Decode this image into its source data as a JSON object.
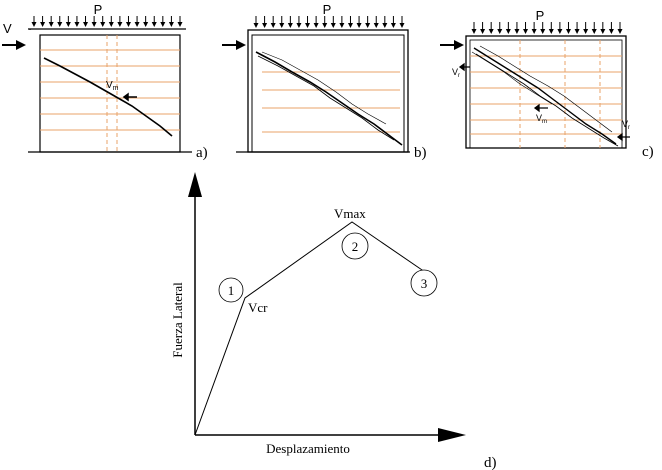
{
  "panels": [
    {
      "label": "a)",
      "load_label": "P",
      "shear_label": "V",
      "force_label": "V",
      "force_sub": "m"
    },
    {
      "label": "b)",
      "load_label": "P"
    },
    {
      "label": "c)",
      "load_label": "P",
      "force_labels": [
        {
          "main": "V",
          "sub": "r"
        },
        {
          "main": "V",
          "sub": "m"
        },
        {
          "main": "V",
          "sub": "r"
        }
      ]
    }
  ],
  "graph": {
    "panel_label": "d)",
    "ylabel": "Fuerza Lateral",
    "xlabel": "Desplazamiento",
    "points": [
      {
        "name": "Vcr",
        "stage": "1"
      },
      {
        "name": "Vmax",
        "stage": "2"
      },
      {
        "name": "",
        "stage": "3"
      }
    ]
  },
  "colors": {
    "line": "#000000",
    "reinforcement": "#e8a36a",
    "background": "#ffffff"
  }
}
